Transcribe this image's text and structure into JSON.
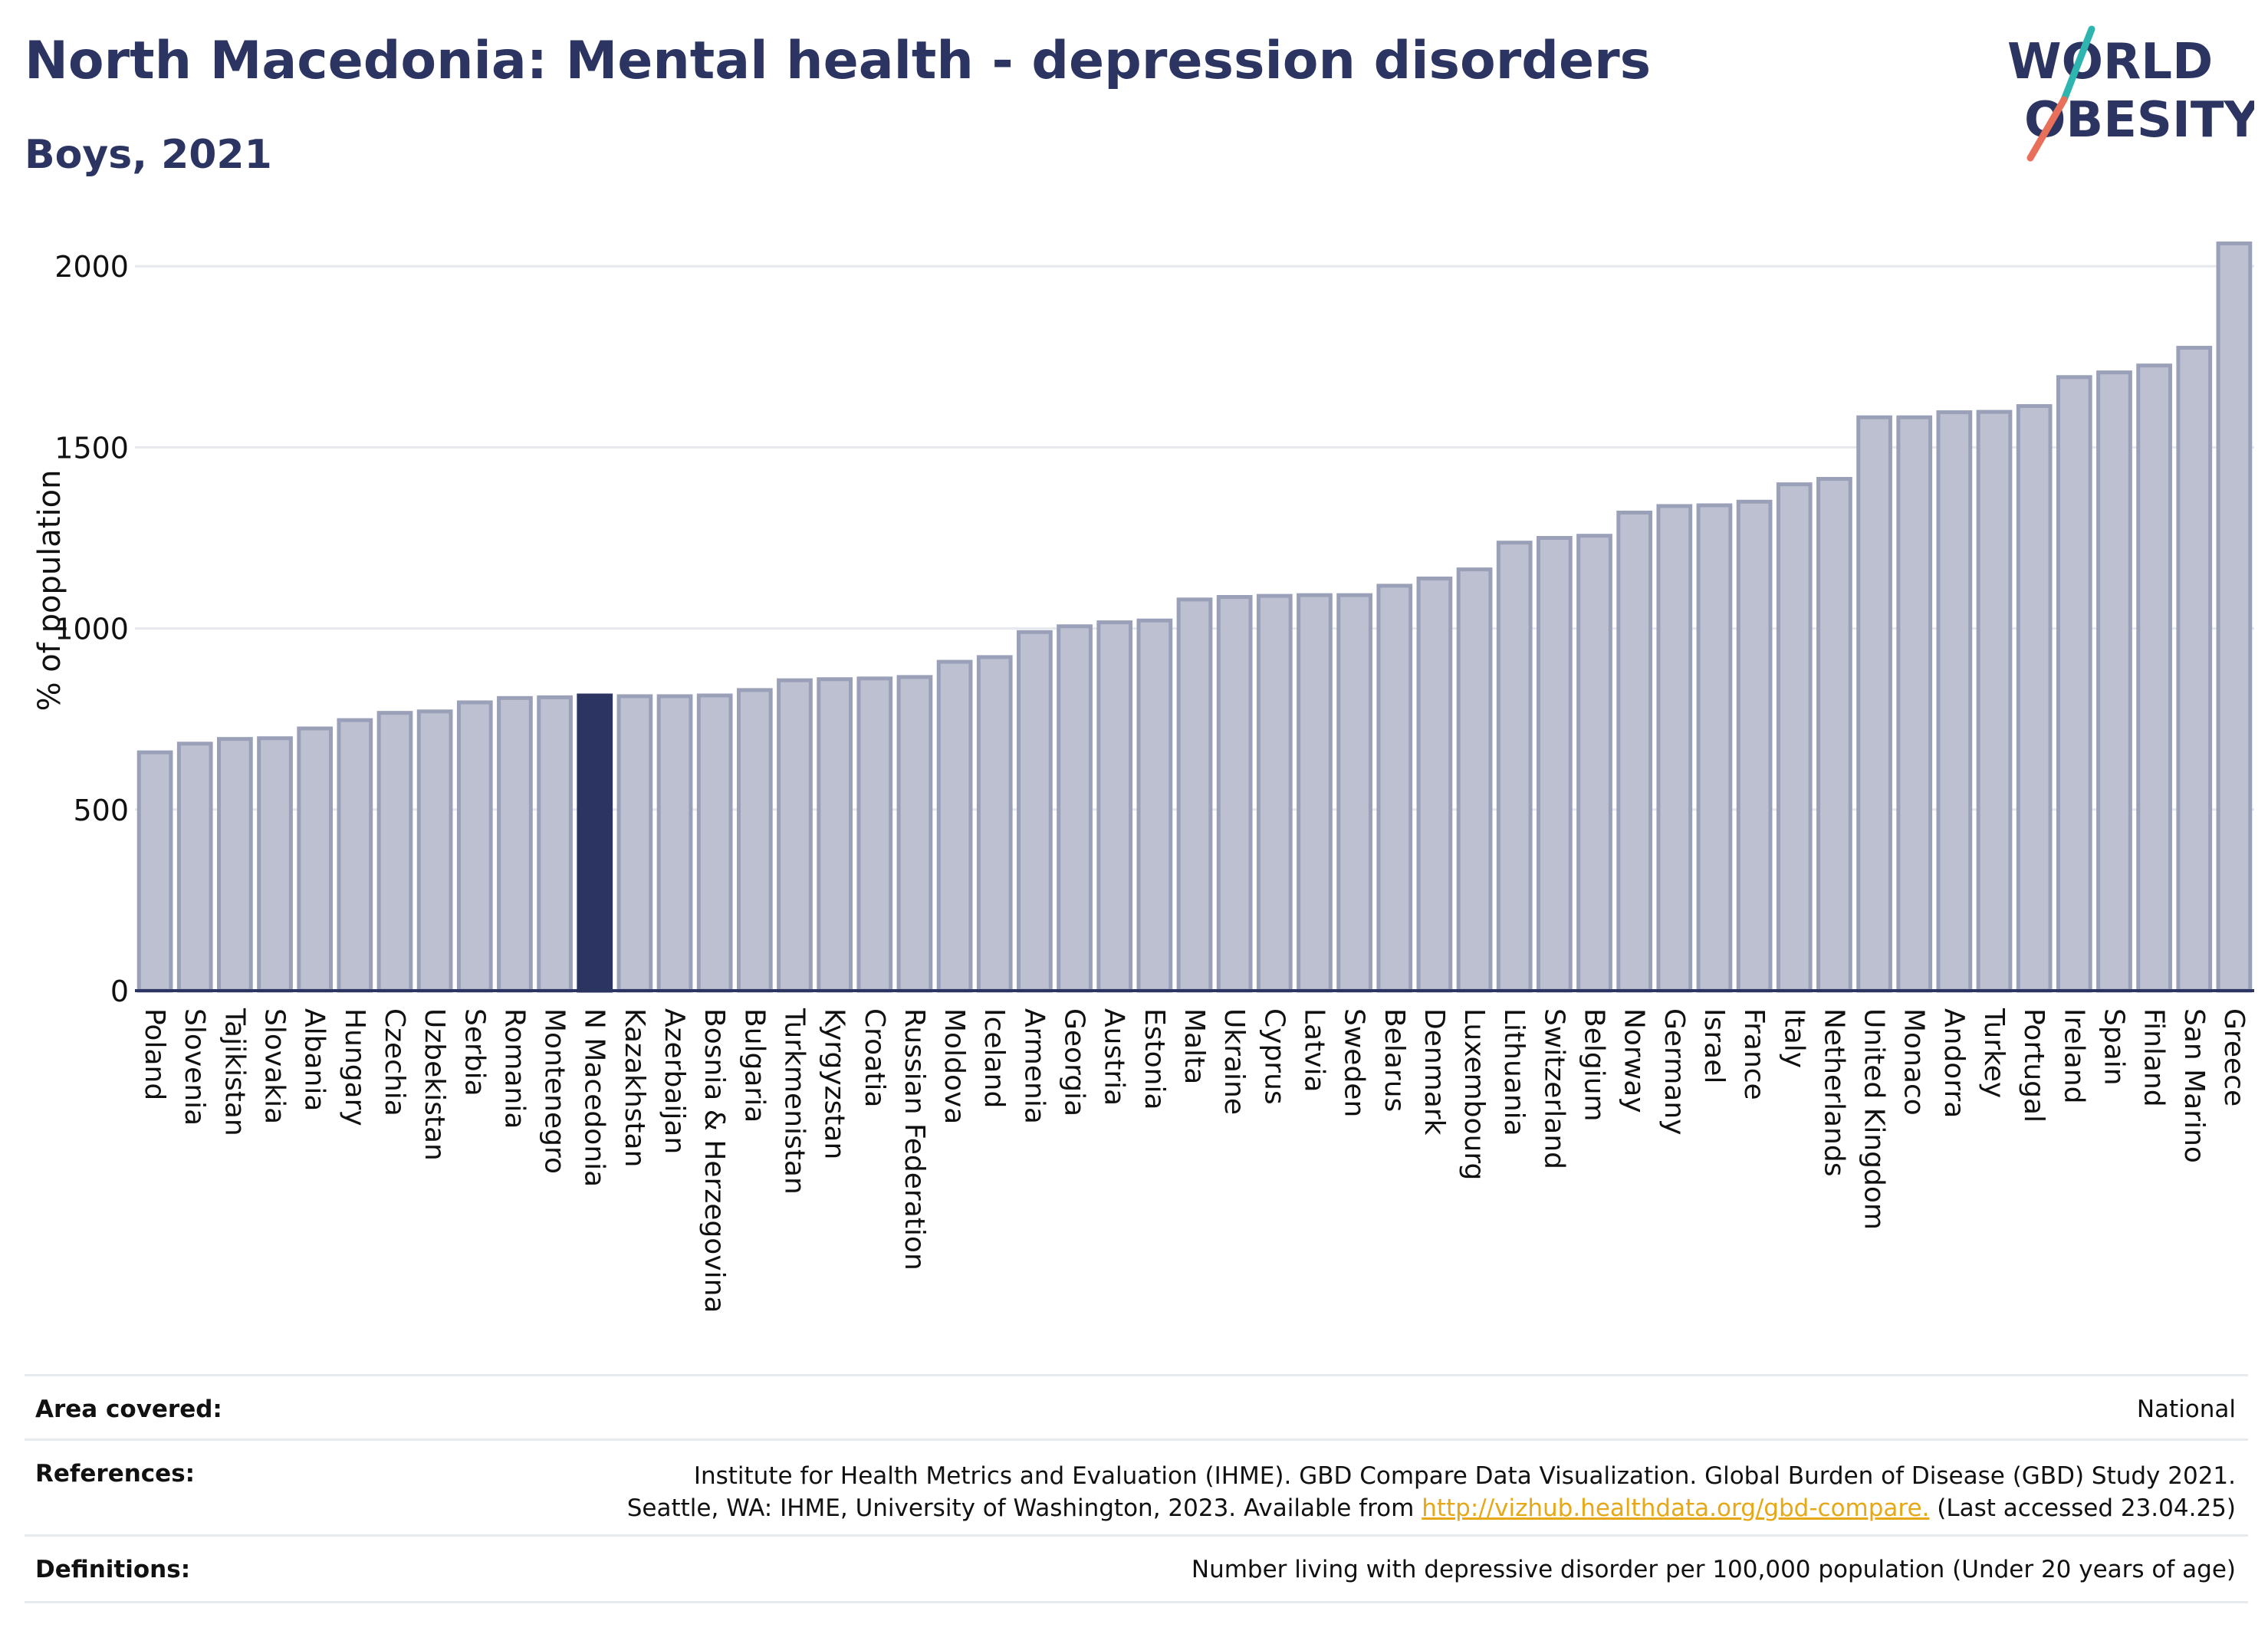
{
  "header": {
    "title": "North Macedonia: Mental health - depression disorders",
    "subtitle": "Boys, 2021"
  },
  "logo": {
    "line1": "WORLD",
    "line2": "OBESITY"
  },
  "chart_data": {
    "type": "bar",
    "ylabel": "% of population",
    "ylim": [
      0,
      2100
    ],
    "yticks": [
      0,
      500,
      1000,
      1500,
      2000
    ],
    "grid": true,
    "highlight": "N Macedonia",
    "colors": {
      "bar": "#bcc0d0",
      "bar_edge": "#9aa0b8",
      "highlight": "#2c3562",
      "axis": "#2c3562",
      "grid": "#e6e8ee"
    },
    "categories": [
      "Poland",
      "Slovenia",
      "Tajikistan",
      "Slovakia",
      "Albania",
      "Hungary",
      "Czechia",
      "Uzbekistan",
      "Serbia",
      "Romania",
      "Montenegro",
      "N Macedonia",
      "Kazakhstan",
      "Azerbaijan",
      "Bosnia & Herzegovina",
      "Bulgaria",
      "Turkmenistan",
      "Kyrgyzstan",
      "Croatia",
      "Russian Federation",
      "Moldova",
      "Iceland",
      "Armenia",
      "Georgia",
      "Austria",
      "Estonia",
      "Malta",
      "Ukraine",
      "Cyprus",
      "Latvia",
      "Sweden",
      "Belarus",
      "Denmark",
      "Luxembourg",
      "Lithuania",
      "Switzerland",
      "Belgium",
      "Norway",
      "Germany",
      "Israel",
      "France",
      "Italy",
      "Netherlands",
      "United Kingdom",
      "Monaco",
      "Andorra",
      "Turkey",
      "Portugal",
      "Ireland",
      "Spain",
      "Finland",
      "San Marino",
      "Greece"
    ],
    "values": [
      658,
      682,
      695,
      697,
      724,
      747,
      767,
      771,
      796,
      808,
      810,
      815,
      813,
      813,
      815,
      830,
      857,
      860,
      862,
      866,
      908,
      921,
      990,
      1006,
      1017,
      1022,
      1080,
      1087,
      1090,
      1092,
      1092,
      1118,
      1138,
      1163,
      1237,
      1250,
      1256,
      1320,
      1338,
      1340,
      1350,
      1398,
      1413,
      1583,
      1583,
      1597,
      1598,
      1614,
      1694,
      1707,
      1726,
      1775,
      2063
    ]
  },
  "meta": {
    "area_label": "Area covered:",
    "area_value": "National",
    "references_label": "References:",
    "references_line1": "Institute for Health Metrics and Evaluation (IHME). GBD Compare Data Visualization. Global Burden of Disease (GBD) Study 2021.",
    "references_line2_pre": "Seattle, WA: IHME, University of Washington, 2023. Available from ",
    "references_link": "http://vizhub.healthdata.org/gbd-compare.",
    "references_line2_post": " (Last accessed 23.04.25)",
    "definitions_label": "Definitions:",
    "definitions_value": "Number living with depressive disorder per 100,000 population (Under 20 years of age)"
  }
}
